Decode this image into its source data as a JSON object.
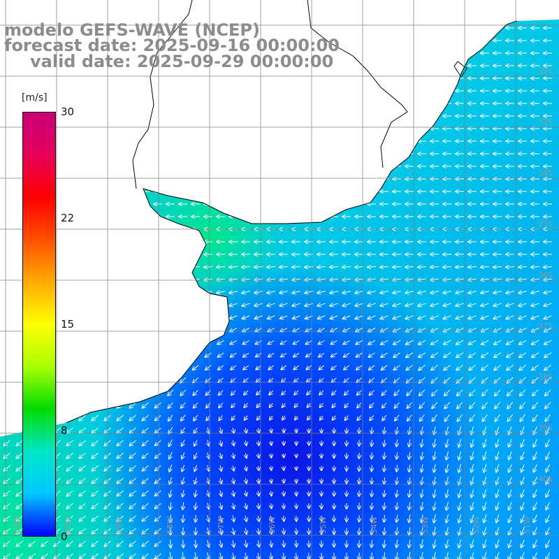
{
  "header": {
    "line1": "modelo GEFS-WAVE (NCEP)",
    "line2": "forecast date: 2025-09-16 00:00:00",
    "line3": "valid date: 2025-09-29 00:00:00"
  },
  "colorbar": {
    "unit": "[m/s]",
    "ticks": [
      "30",
      "22",
      "15",
      "8",
      "0"
    ],
    "tick_values": [
      30,
      22,
      15,
      8,
      0
    ],
    "colors": [
      "#0000ff",
      "#00c8ff",
      "#00e6c8",
      "#00dc00",
      "#aaff00",
      "#ffff00",
      "#ffaa00",
      "#ff5000",
      "#ff0000",
      "#e6005a",
      "#c80078"
    ]
  },
  "map": {
    "region": "South Atlantic off Uruguay / Rio de la Plata",
    "lat_labels": [
      "32S",
      "33S",
      "34S",
      "35S",
      "36S",
      "37S",
      "38S",
      "39S",
      "40S"
    ],
    "lon_labels": [
      "61W",
      "60W",
      "59W",
      "58W",
      "57W",
      "56W",
      "55W",
      "54W",
      "53W",
      "52W",
      "51W"
    ],
    "land_color": "#ffffff",
    "coast_color": "#000000",
    "grid_color": "#7f7f7f",
    "wind_arrow_color": "#ffffff",
    "prevailing_wind_direction": "westward near coast, southward in south"
  }
}
